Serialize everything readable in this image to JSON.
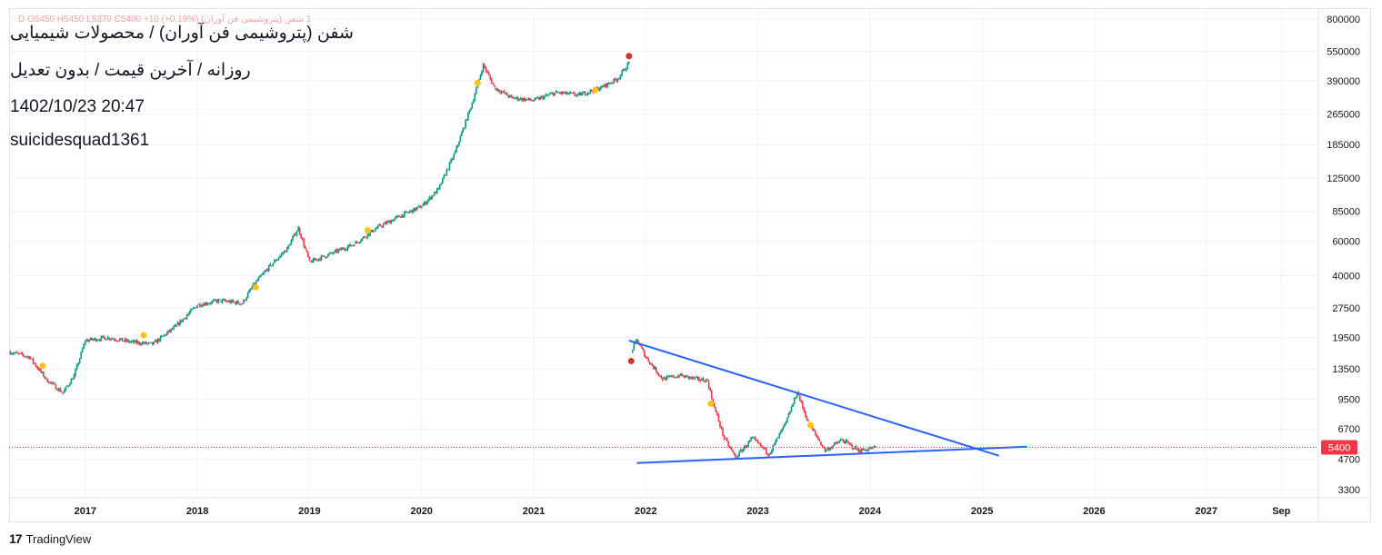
{
  "header": {
    "ohlc": "1 شفن (پتروشیمی فن آوران)  D  O5450  H5450  L5370  C5400  +10 (+0.19%)",
    "symbol_title": "شفن (پتروشیمی فن آوران) / محصولات شیمیایی",
    "interval_line": "روزانه / آخرین قیمت / بدون تعدیل",
    "datetime": "1402/10/23 20:47",
    "author": "suicidesquad1361"
  },
  "footer": {
    "logo": "17",
    "brand": "TradingView"
  },
  "colors": {
    "up": "#089981",
    "down": "#f23645",
    "trendline": "#2962ff",
    "dot_yellow": "#f5c518",
    "dot_red": "#d32f2f",
    "grid": "#f0f3fa",
    "price_line": "#f23645"
  },
  "chart_data": {
    "type": "candlestick",
    "scale": "log",
    "title": "شفن (پتروشیمی فن آوران) / محصولات شیمیایی",
    "ylim": [
      3000,
      900000
    ],
    "xlim": [
      2016.32,
      2028.0
    ],
    "price_axis_labels": [
      "800000",
      "550000",
      "390000",
      "265000",
      "185000",
      "125000",
      "85000",
      "60000",
      "40000",
      "27500",
      "19500",
      "13500",
      "9500",
      "6700",
      "4700",
      "3300"
    ],
    "time_axis_labels": [
      {
        "label": "2017",
        "t": 2017.0
      },
      {
        "label": "2018",
        "t": 2018.0
      },
      {
        "label": "2019",
        "t": 2019.0
      },
      {
        "label": "2020",
        "t": 2020.0
      },
      {
        "label": "2021",
        "t": 2021.0
      },
      {
        "label": "2022",
        "t": 2022.0
      },
      {
        "label": "2023",
        "t": 2023.0
      },
      {
        "label": "2024",
        "t": 2024.0
      },
      {
        "label": "2025",
        "t": 2025.0
      },
      {
        "label": "2026",
        "t": 2026.0
      },
      {
        "label": "2027",
        "t": 2027.0
      },
      {
        "label": "Sep",
        "t": 2027.67
      }
    ],
    "last_price": {
      "label": "5400",
      "value": 5400
    },
    "price_path": [
      [
        2016.32,
        16500
      ],
      [
        2016.5,
        15500
      ],
      [
        2016.65,
        12000
      ],
      [
        2016.8,
        10200
      ],
      [
        2016.9,
        12500
      ],
      [
        2017.0,
        18800
      ],
      [
        2017.2,
        19500
      ],
      [
        2017.4,
        18500
      ],
      [
        2017.6,
        18000
      ],
      [
        2017.8,
        22000
      ],
      [
        2018.0,
        28500
      ],
      [
        2018.2,
        30000
      ],
      [
        2018.4,
        29000
      ],
      [
        2018.5,
        36000
      ],
      [
        2018.65,
        45000
      ],
      [
        2018.8,
        55000
      ],
      [
        2018.9,
        70000
      ],
      [
        2019.0,
        47000
      ],
      [
        2019.2,
        52000
      ],
      [
        2019.4,
        58000
      ],
      [
        2019.6,
        70000
      ],
      [
        2019.8,
        80000
      ],
      [
        2020.0,
        90000
      ],
      [
        2020.15,
        110000
      ],
      [
        2020.3,
        170000
      ],
      [
        2020.45,
        300000
      ],
      [
        2020.55,
        470000
      ],
      [
        2020.65,
        360000
      ],
      [
        2020.8,
        320000
      ],
      [
        2021.0,
        310000
      ],
      [
        2021.2,
        340000
      ],
      [
        2021.4,
        330000
      ],
      [
        2021.6,
        360000
      ],
      [
        2021.75,
        400000
      ],
      [
        2021.85,
        480000
      ]
    ],
    "recent_path": [
      [
        2021.87,
        16500
      ],
      [
        2021.92,
        19000
      ],
      [
        2022.0,
        15500
      ],
      [
        2022.15,
        12000
      ],
      [
        2022.3,
        12500
      ],
      [
        2022.45,
        12000
      ],
      [
        2022.55,
        11800
      ],
      [
        2022.6,
        9000
      ],
      [
        2022.7,
        6000
      ],
      [
        2022.8,
        4800
      ],
      [
        2022.95,
        6000
      ],
      [
        2023.1,
        5000
      ],
      [
        2023.25,
        7200
      ],
      [
        2023.35,
        10300
      ],
      [
        2023.45,
        7200
      ],
      [
        2023.6,
        5200
      ],
      [
        2023.75,
        5900
      ],
      [
        2023.9,
        5200
      ],
      [
        2024.05,
        5400
      ]
    ],
    "markers": [
      {
        "t": 2016.62,
        "v": 14000,
        "color": "yellow"
      },
      {
        "t": 2017.52,
        "v": 20000,
        "color": "yellow"
      },
      {
        "t": 2018.52,
        "v": 35000,
        "color": "yellow"
      },
      {
        "t": 2019.52,
        "v": 68000,
        "color": "yellow"
      },
      {
        "t": 2020.5,
        "v": 380000,
        "color": "yellow"
      },
      {
        "t": 2021.55,
        "v": 350000,
        "color": "yellow"
      },
      {
        "t": 2021.85,
        "v": 520000,
        "color": "red"
      },
      {
        "t": 2021.87,
        "v": 14800,
        "color": "red"
      },
      {
        "t": 2022.58,
        "v": 9000,
        "color": "yellow"
      },
      {
        "t": 2023.47,
        "v": 7000,
        "color": "yellow"
      }
    ],
    "trendlines": [
      {
        "from": [
          2021.85,
          18800
        ],
        "to": [
          2025.15,
          4900
        ]
      },
      {
        "from": [
          2021.92,
          4500
        ],
        "to": [
          2025.4,
          5450
        ]
      }
    ]
  }
}
